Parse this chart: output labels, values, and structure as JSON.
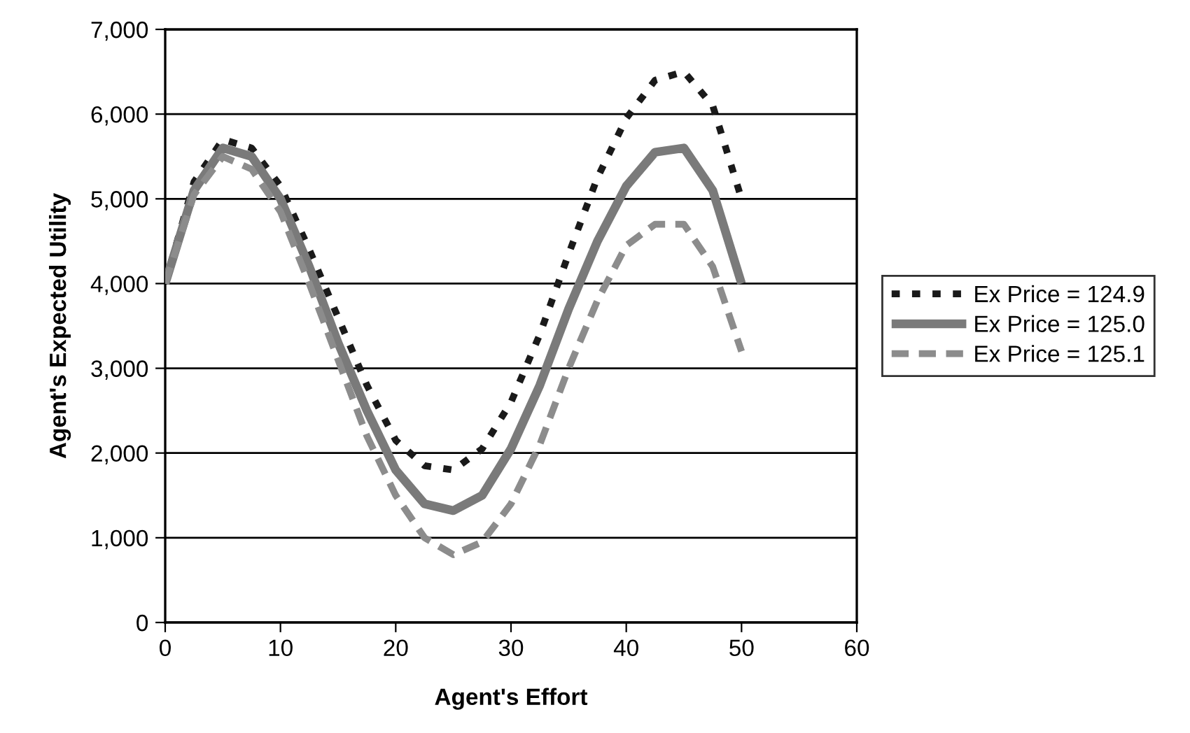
{
  "chart_data": {
    "type": "line",
    "xlabel": "Agent's Effort",
    "ylabel": "Agent's Expected Utility",
    "x": [
      0,
      2.5,
      5,
      7.5,
      10,
      12.5,
      15,
      17.5,
      20,
      22.5,
      25,
      27.5,
      30,
      32.5,
      35,
      37.5,
      40,
      42.5,
      45,
      47.5,
      50
    ],
    "series": [
      {
        "name": "Ex Price = 124.9",
        "color": "#1a1a1a",
        "line_style": "dotted",
        "values": [
          4000,
          5200,
          5700,
          5600,
          5150,
          4400,
          3600,
          2800,
          2150,
          1850,
          1800,
          2050,
          2600,
          3400,
          4350,
          5250,
          5950,
          6400,
          6500,
          6100,
          5000
        ]
      },
      {
        "name": "Ex Price = 125.0",
        "color": "#7a7a7a",
        "line_style": "solid",
        "values": [
          4000,
          5100,
          5600,
          5500,
          5000,
          4200,
          3300,
          2500,
          1800,
          1400,
          1320,
          1500,
          2050,
          2800,
          3700,
          4500,
          5150,
          5550,
          5600,
          5100,
          4000
        ]
      },
      {
        "name": "Ex Price = 125.1",
        "color": "#8c8c8c",
        "line_style": "dashed",
        "values": [
          4000,
          5050,
          5500,
          5350,
          4850,
          4000,
          3100,
          2200,
          1500,
          1000,
          800,
          950,
          1400,
          2100,
          3000,
          3800,
          4450,
          4700,
          4700,
          4200,
          3200
        ]
      }
    ],
    "xlim": [
      0,
      60
    ],
    "xticks": [
      0,
      10,
      20,
      30,
      40,
      50,
      60
    ],
    "ylim": [
      0,
      7000
    ],
    "yticks": [
      {
        "value": 0,
        "label": "0"
      },
      {
        "value": 1000,
        "label": "1,000"
      },
      {
        "value": 2000,
        "label": "2,000"
      },
      {
        "value": 3000,
        "label": "3,000"
      },
      {
        "value": 4000,
        "label": "4,000"
      },
      {
        "value": 5000,
        "label": "5,000"
      },
      {
        "value": 6000,
        "label": "6,000"
      },
      {
        "value": 7000,
        "label": "7,000"
      }
    ],
    "grid": "y",
    "legend": "right",
    "marker": "none"
  }
}
